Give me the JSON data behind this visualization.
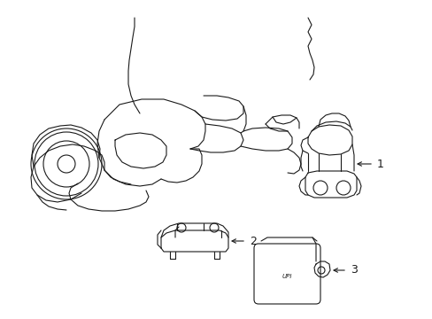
{
  "bg_color": "#ffffff",
  "line_color": "#1a1a1a",
  "line_width": 0.8,
  "fig_width": 4.89,
  "fig_height": 3.6,
  "dpi": 100
}
